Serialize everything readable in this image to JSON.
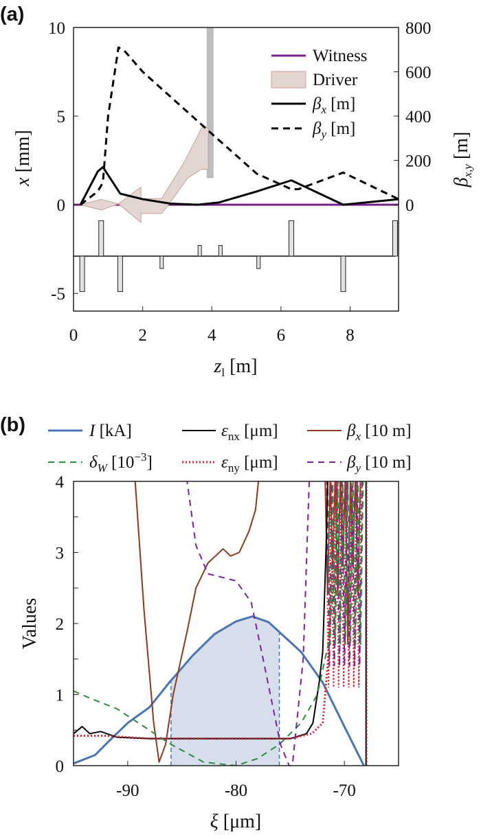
{
  "chart_data": [
    {
      "panel_label": "(a)",
      "type": "line",
      "xlabel": {
        "var": "z",
        "sub": "l",
        "unit": " [m]"
      },
      "ylabel_left": {
        "var": "x",
        "unit": " [mm]"
      },
      "ylabel_right": {
        "var": "β",
        "sub": "x,y",
        "unit": " [m]"
      },
      "xlim": [
        0,
        9.4
      ],
      "ylim_left": [
        -6,
        10
      ],
      "ylim_right": [
        -480,
        800
      ],
      "xticks": [
        "0",
        "2",
        "4",
        "6",
        "8"
      ],
      "yticks_left": [
        "-5",
        "0",
        "5",
        "10"
      ],
      "yticks_right": [
        "0",
        "200",
        "400",
        "600",
        "800"
      ],
      "legend": {
        "position": "top-right",
        "items": [
          {
            "label": "Witness"
          },
          {
            "label": "Driver"
          },
          {
            "var": "β",
            "sub": "x",
            "unit": " [m]"
          },
          {
            "var": "β",
            "sub": "y",
            "unit": " [m]"
          }
        ]
      },
      "series": [
        {
          "name": "Witness",
          "axis": "left",
          "color": "#7b1f8e",
          "style": "solid",
          "x": [
            0,
            9.4
          ],
          "y": [
            0,
            0
          ]
        },
        {
          "name": "Driver",
          "axis": "left",
          "type": "band",
          "color": "#e3d6d1",
          "edge": "#c7a096",
          "upper": [
            [
              0.2,
              0
            ],
            [
              0.8,
              0.3
            ],
            [
              1.3,
              0.05
            ],
            [
              1.95,
              1.0
            ],
            [
              1.95,
              0.35
            ],
            [
              2.55,
              0.35
            ],
            [
              3.2,
              2.4
            ],
            [
              3.75,
              4.5
            ],
            [
              3.9,
              4.3
            ]
          ],
          "lower": [
            [
              0.2,
              0
            ],
            [
              0.8,
              -0.3
            ],
            [
              1.3,
              0.05
            ],
            [
              1.95,
              -1.0
            ],
            [
              1.95,
              -0.5
            ],
            [
              2.55,
              -0.5
            ],
            [
              2.75,
              0
            ],
            [
              3.3,
              1.5
            ],
            [
              3.7,
              2.0
            ],
            [
              3.9,
              2.0
            ]
          ]
        },
        {
          "name": "βx [m]",
          "axis": "right",
          "color": "#000000",
          "style": "solid",
          "x": [
            0.2,
            0.7,
            0.85,
            1.35,
            2.0,
            2.8,
            3.6,
            4.2,
            5.3,
            6.3,
            7.8,
            9.4
          ],
          "y": [
            0,
            150,
            170,
            50,
            25,
            5,
            0,
            10,
            60,
            110,
            0,
            25
          ]
        },
        {
          "name": "βy [m]",
          "axis": "right",
          "color": "#000000",
          "style": "dashed",
          "x": [
            0.2,
            0.7,
            0.85,
            1.0,
            1.3,
            1.5,
            2.0,
            3.0,
            4.0,
            5.3,
            6.3,
            6.5,
            7.8,
            9.4
          ],
          "y": [
            0,
            60,
            100,
            400,
            710,
            690,
            600,
            460,
            320,
            140,
            70,
            70,
            145,
            25
          ]
        }
      ],
      "marker_bar": {
        "z": 3.95,
        "from": 1.5,
        "to": 10,
        "color": "#bdbdbd"
      },
      "lattice": {
        "baseline": -2.9,
        "unit_amplitude": 2.0,
        "elements": [
          {
            "z": 0.25,
            "strength": -1
          },
          {
            "z": 0.8,
            "strength": 1
          },
          {
            "z": 1.35,
            "strength": -1
          },
          {
            "z": 2.55,
            "strength": -0.35
          },
          {
            "z": 3.65,
            "strength": 0.3
          },
          {
            "z": 4.25,
            "strength": 0.3
          },
          {
            "z": 5.35,
            "strength": -0.35
          },
          {
            "z": 6.3,
            "strength": 1
          },
          {
            "z": 7.8,
            "strength": -1
          },
          {
            "z": 9.3,
            "strength": 1
          }
        ]
      }
    },
    {
      "panel_label": "(b)",
      "type": "line",
      "xlabel": {
        "var": "ξ",
        "unit": " [μm]"
      },
      "ylabel": "Values",
      "xlim": [
        -95,
        -65
      ],
      "ylim": [
        0,
        4
      ],
      "xticks": [
        "-90",
        "-80",
        "-70"
      ],
      "yticks": [
        "0",
        "1",
        "2",
        "3",
        "4"
      ],
      "legend": {
        "position": "top",
        "items": [
          {
            "var": "I",
            "unit": " [kA]"
          },
          {
            "var": "ε",
            "sub": "nx",
            "unit": " [μm]"
          },
          {
            "var": "β",
            "sub": "x",
            "unit": " [10 m]"
          },
          {
            "var": "δ",
            "sub": "W",
            "unit": " [10",
            "sup": "−3",
            "unit2": "]"
          },
          {
            "var": "ε",
            "sub": "ny",
            "unit": " [μm]"
          },
          {
            "var": "β",
            "sub": "y",
            "unit": " [10 m]"
          }
        ]
      },
      "series": [
        {
          "name": "I [kA]",
          "color": "#4a74b4",
          "style": "solid",
          "x": [
            -95,
            -93,
            -91.7,
            -90,
            -88,
            -86,
            -85.7,
            -84,
            -82,
            -80,
            -78.5,
            -77,
            -76,
            -74,
            -72,
            -70,
            -68.2
          ],
          "y": [
            0.03,
            0.15,
            0.35,
            0.6,
            0.82,
            1.2,
            1.25,
            1.55,
            1.85,
            2.03,
            2.1,
            2.02,
            1.88,
            1.6,
            1.17,
            0.55,
            0
          ]
        },
        {
          "name": "εnx [μm]",
          "color": "#000000",
          "style": "solid",
          "x": [
            -95,
            -94.2,
            -93.5,
            -92.5,
            -91,
            -88,
            -80,
            -75,
            -73.5,
            -72.9,
            -72.3,
            -72,
            -71.7,
            -71.5
          ],
          "y": [
            0.45,
            0.55,
            0.45,
            0.48,
            0.4,
            0.38,
            0.38,
            0.38,
            0.45,
            0.6,
            1.2,
            1.6,
            3.0,
            4.2
          ]
        },
        {
          "name": "βx [10 m]",
          "color": "#8b3a1e",
          "style": "solid",
          "x": [
            -89.4,
            -88.5,
            -87.6,
            -87.1,
            -86.5,
            -85.8,
            -84.5,
            -83.7,
            -82.6,
            -81.2,
            -80.5,
            -79.7,
            -78.8,
            -78.2,
            -77.8
          ],
          "y": [
            4.2,
            2.2,
            0.6,
            0.05,
            0.3,
            1.0,
            1.9,
            2.5,
            2.85,
            3.05,
            2.95,
            3.0,
            3.3,
            3.6,
            4.2
          ]
        },
        {
          "name": "δW [10^-3]",
          "color": "#2e8b3e",
          "style": "dashed",
          "x": [
            -95,
            -93.5,
            -91,
            -88.5,
            -86,
            -83,
            -80,
            -78,
            -76,
            -74,
            -72.5,
            -71.5,
            -71,
            -70.5
          ],
          "y": [
            1.05,
            0.95,
            0.8,
            0.55,
            0.3,
            0.05,
            0,
            0.1,
            0.3,
            0.6,
            1.0,
            1.7,
            2.5,
            4.2
          ]
        },
        {
          "name": "εny [μm]",
          "color": "#e0202a",
          "style": "dotted",
          "x": [
            -95,
            -92,
            -88,
            -80,
            -75,
            -73,
            -72,
            -71.5,
            -71,
            -70.8
          ],
          "y": [
            0.42,
            0.42,
            0.38,
            0.38,
            0.38,
            0.45,
            0.6,
            1.5,
            3.0,
            4.2
          ]
        },
        {
          "name": "βy [10 m]",
          "color": "#7f1fa0",
          "style": "dashed",
          "x": [
            -84.7,
            -83.7,
            -82.6,
            -80,
            -78.6,
            -77.5,
            -75.9,
            -75.1,
            -74.8,
            -73.8,
            -73.2
          ],
          "y": [
            4.2,
            3.1,
            2.7,
            2.6,
            2.3,
            1.5,
            0.3,
            0,
            0,
            1.5,
            4.2
          ]
        }
      ],
      "spikes": {
        "x_from": -71.8,
        "x_to": -69,
        "min_brown": 1.7
      },
      "vertical_edge": {
        "x": -68,
        "colors": [
          "#000000",
          "#e0202a"
        ]
      },
      "shaded_region": {
        "x_from": -86,
        "x_to": -76,
        "color": "#d6deeb",
        "edge": "#4a74b4"
      }
    }
  ]
}
